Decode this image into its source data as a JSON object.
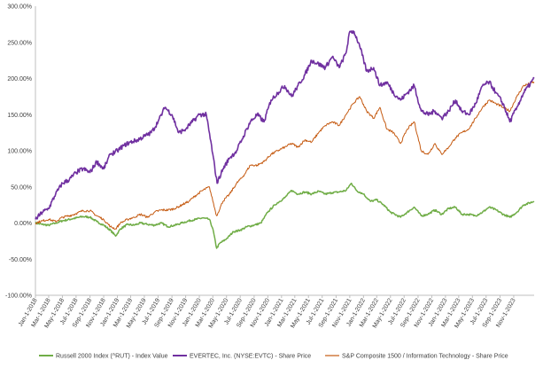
{
  "chart_data": {
    "type": "line",
    "title": "",
    "xlabel": "",
    "ylabel": "",
    "ylim": [
      -100,
      300
    ],
    "y_ticks": [
      -100,
      -50,
      0,
      50,
      100,
      150,
      200,
      250,
      300
    ],
    "y_tick_labels": [
      "-100.00%",
      "-50.00%",
      "0.00%",
      "50.00%",
      "100.00%",
      "150.00%",
      "200.00%",
      "250.00%",
      "300.00%"
    ],
    "x_range": [
      "2018-01-01",
      "2024-01-31"
    ],
    "x_tick_labels": [
      "Jan-1-2018",
      "Mar-1-2018",
      "May-1-2018",
      "Jul-1-2018",
      "Sep-1-2018",
      "Nov-1-2018",
      "Jan-1-2019",
      "Mar-1-2019",
      "May-1-2019",
      "Jul-1-2019",
      "Sep-1-2019",
      "Nov-1-2019",
      "Jan-1-2020",
      "Mar-1-2020",
      "May-1-2020",
      "Jul-1-2020",
      "Sep-1-2020",
      "Nov-1-2020",
      "Jan-1-2021",
      "Mar-1-2021",
      "May-1-2021",
      "Jul-1-2021",
      "Sep-1-2021",
      "Nov-1-2021",
      "Jan-1-2022",
      "Mar-1-2022",
      "May-1-2022",
      "Jul-1-2022",
      "Sep-1-2022",
      "Nov-1-2022",
      "Jan-1-2023",
      "Mar-1-2023",
      "May-1-2023",
      "Jul-1-2023",
      "Sep-1-2023",
      "Nov-1-2023"
    ],
    "grid": false,
    "legend_position": "bottom",
    "series": [
      {
        "name": "Russell 2000 Index (^RUT) - Index Value",
        "color": "#70ad47",
        "points": [
          [
            "2018-01-01",
            0
          ],
          [
            "2018-02-01",
            -2
          ],
          [
            "2018-03-01",
            -3
          ],
          [
            "2018-04-01",
            0
          ],
          [
            "2018-05-01",
            3
          ],
          [
            "2018-06-01",
            5
          ],
          [
            "2018-07-01",
            7
          ],
          [
            "2018-08-01",
            9
          ],
          [
            "2018-09-01",
            8
          ],
          [
            "2018-10-01",
            2
          ],
          [
            "2018-11-01",
            -3
          ],
          [
            "2018-12-01",
            -10
          ],
          [
            "2018-12-24",
            -18
          ],
          [
            "2019-01-15",
            -8
          ],
          [
            "2019-02-15",
            -2
          ],
          [
            "2019-03-15",
            -3
          ],
          [
            "2019-04-15",
            0
          ],
          [
            "2019-05-15",
            -2
          ],
          [
            "2019-06-15",
            -3
          ],
          [
            "2019-07-15",
            0
          ],
          [
            "2019-08-15",
            -5
          ],
          [
            "2019-09-15",
            -3
          ],
          [
            "2019-10-15",
            0
          ],
          [
            "2019-11-15",
            3
          ],
          [
            "2019-12-15",
            5
          ],
          [
            "2020-01-15",
            7
          ],
          [
            "2020-02-15",
            5
          ],
          [
            "2020-03-01",
            -8
          ],
          [
            "2020-03-18",
            -35
          ],
          [
            "2020-04-01",
            -28
          ],
          [
            "2020-05-01",
            -22
          ],
          [
            "2020-06-01",
            -12
          ],
          [
            "2020-07-01",
            -10
          ],
          [
            "2020-08-01",
            -5
          ],
          [
            "2020-09-01",
            -3
          ],
          [
            "2020-10-01",
            0
          ],
          [
            "2020-11-01",
            15
          ],
          [
            "2020-12-01",
            25
          ],
          [
            "2021-01-15",
            35
          ],
          [
            "2021-02-15",
            45
          ],
          [
            "2021-03-15",
            40
          ],
          [
            "2021-04-15",
            43
          ],
          [
            "2021-05-15",
            40
          ],
          [
            "2021-06-15",
            44
          ],
          [
            "2021-07-15",
            40
          ],
          [
            "2021-08-15",
            42
          ],
          [
            "2021-09-15",
            43
          ],
          [
            "2021-10-15",
            45
          ],
          [
            "2021-11-08",
            55
          ],
          [
            "2021-12-01",
            45
          ],
          [
            "2022-01-01",
            40
          ],
          [
            "2022-02-01",
            30
          ],
          [
            "2022-03-01",
            32
          ],
          [
            "2022-04-01",
            25
          ],
          [
            "2022-05-01",
            15
          ],
          [
            "2022-06-15",
            8
          ],
          [
            "2022-07-15",
            15
          ],
          [
            "2022-08-15",
            22
          ],
          [
            "2022-09-15",
            10
          ],
          [
            "2022-10-15",
            12
          ],
          [
            "2022-11-15",
            18
          ],
          [
            "2022-12-15",
            12
          ],
          [
            "2023-01-15",
            20
          ],
          [
            "2023-02-15",
            22
          ],
          [
            "2023-03-15",
            12
          ],
          [
            "2023-04-15",
            12
          ],
          [
            "2023-05-15",
            10
          ],
          [
            "2023-06-15",
            15
          ],
          [
            "2023-07-15",
            22
          ],
          [
            "2023-08-15",
            18
          ],
          [
            "2023-09-15",
            12
          ],
          [
            "2023-10-15",
            8
          ],
          [
            "2023-11-15",
            15
          ],
          [
            "2023-12-15",
            25
          ],
          [
            "2024-01-31",
            30
          ]
        ]
      },
      {
        "name": "EVERTEC, Inc. (NYSE:EVTC) - Share Price",
        "color": "#7030a0",
        "points": [
          [
            "2018-01-01",
            5
          ],
          [
            "2018-02-01",
            15
          ],
          [
            "2018-03-01",
            20
          ],
          [
            "2018-04-01",
            40
          ],
          [
            "2018-05-01",
            55
          ],
          [
            "2018-06-01",
            60
          ],
          [
            "2018-07-01",
            70
          ],
          [
            "2018-08-01",
            75
          ],
          [
            "2018-09-01",
            70
          ],
          [
            "2018-10-01",
            85
          ],
          [
            "2018-11-01",
            75
          ],
          [
            "2018-12-01",
            95
          ],
          [
            "2019-01-01",
            100
          ],
          [
            "2019-02-01",
            108
          ],
          [
            "2019-03-01",
            112
          ],
          [
            "2019-04-01",
            115
          ],
          [
            "2019-05-01",
            120
          ],
          [
            "2019-06-01",
            125
          ],
          [
            "2019-07-01",
            140
          ],
          [
            "2019-08-01",
            160
          ],
          [
            "2019-09-01",
            150
          ],
          [
            "2019-10-01",
            125
          ],
          [
            "2019-11-01",
            130
          ],
          [
            "2019-12-01",
            140
          ],
          [
            "2020-01-01",
            150
          ],
          [
            "2020-02-01",
            150
          ],
          [
            "2020-03-01",
            95
          ],
          [
            "2020-03-20",
            55
          ],
          [
            "2020-04-15",
            75
          ],
          [
            "2020-05-15",
            90
          ],
          [
            "2020-06-15",
            100
          ],
          [
            "2020-07-15",
            120
          ],
          [
            "2020-08-15",
            140
          ],
          [
            "2020-09-15",
            150
          ],
          [
            "2020-10-15",
            140
          ],
          [
            "2020-11-15",
            170
          ],
          [
            "2020-12-15",
            180
          ],
          [
            "2021-01-15",
            190
          ],
          [
            "2021-02-15",
            175
          ],
          [
            "2021-03-15",
            190
          ],
          [
            "2021-04-15",
            205
          ],
          [
            "2021-05-15",
            225
          ],
          [
            "2021-06-15",
            220
          ],
          [
            "2021-07-15",
            215
          ],
          [
            "2021-08-15",
            230
          ],
          [
            "2021-09-15",
            215
          ],
          [
            "2021-10-15",
            235
          ],
          [
            "2021-11-01",
            265
          ],
          [
            "2021-11-20",
            265
          ],
          [
            "2021-12-15",
            245
          ],
          [
            "2022-01-15",
            210
          ],
          [
            "2022-02-15",
            215
          ],
          [
            "2022-03-15",
            190
          ],
          [
            "2022-04-15",
            195
          ],
          [
            "2022-05-15",
            180
          ],
          [
            "2022-06-15",
            170
          ],
          [
            "2022-07-15",
            180
          ],
          [
            "2022-08-15",
            190
          ],
          [
            "2022-09-15",
            155
          ],
          [
            "2022-10-15",
            150
          ],
          [
            "2022-11-15",
            155
          ],
          [
            "2022-12-15",
            145
          ],
          [
            "2023-01-15",
            155
          ],
          [
            "2023-02-15",
            170
          ],
          [
            "2023-03-15",
            155
          ],
          [
            "2023-04-15",
            150
          ],
          [
            "2023-05-15",
            165
          ],
          [
            "2023-06-15",
            190
          ],
          [
            "2023-07-15",
            195
          ],
          [
            "2023-08-15",
            180
          ],
          [
            "2023-09-15",
            165
          ],
          [
            "2023-10-15",
            140
          ],
          [
            "2023-11-15",
            160
          ],
          [
            "2023-12-15",
            180
          ],
          [
            "2024-01-31",
            200
          ]
        ]
      },
      {
        "name": "S&P Composite 1500 / Information Technology - Share Price",
        "color": "#c55a11",
        "points": [
          [
            "2018-01-01",
            0
          ],
          [
            "2018-02-01",
            3
          ],
          [
            "2018-03-01",
            5
          ],
          [
            "2018-04-01",
            2
          ],
          [
            "2018-05-01",
            8
          ],
          [
            "2018-06-01",
            10
          ],
          [
            "2018-07-01",
            13
          ],
          [
            "2018-08-01",
            17
          ],
          [
            "2018-09-01",
            17
          ],
          [
            "2018-10-01",
            10
          ],
          [
            "2018-11-01",
            5
          ],
          [
            "2018-12-01",
            -5
          ],
          [
            "2018-12-24",
            -8
          ],
          [
            "2019-01-15",
            0
          ],
          [
            "2019-02-15",
            5
          ],
          [
            "2019-03-15",
            8
          ],
          [
            "2019-04-15",
            12
          ],
          [
            "2019-05-15",
            8
          ],
          [
            "2019-06-15",
            15
          ],
          [
            "2019-07-15",
            18
          ],
          [
            "2019-08-15",
            18
          ],
          [
            "2019-09-15",
            20
          ],
          [
            "2019-10-15",
            25
          ],
          [
            "2019-11-15",
            30
          ],
          [
            "2019-12-15",
            38
          ],
          [
            "2020-01-15",
            45
          ],
          [
            "2020-02-15",
            50
          ],
          [
            "2020-03-01",
            30
          ],
          [
            "2020-03-18",
            10
          ],
          [
            "2020-04-15",
            30
          ],
          [
            "2020-05-15",
            40
          ],
          [
            "2020-06-15",
            55
          ],
          [
            "2020-07-15",
            65
          ],
          [
            "2020-08-15",
            80
          ],
          [
            "2020-09-15",
            80
          ],
          [
            "2020-10-15",
            85
          ],
          [
            "2020-11-15",
            95
          ],
          [
            "2020-12-15",
            100
          ],
          [
            "2021-01-15",
            105
          ],
          [
            "2021-02-15",
            110
          ],
          [
            "2021-03-15",
            105
          ],
          [
            "2021-04-15",
            115
          ],
          [
            "2021-05-15",
            112
          ],
          [
            "2021-06-15",
            125
          ],
          [
            "2021-07-15",
            135
          ],
          [
            "2021-08-15",
            140
          ],
          [
            "2021-09-15",
            135
          ],
          [
            "2021-10-15",
            150
          ],
          [
            "2021-11-15",
            165
          ],
          [
            "2021-12-15",
            175
          ],
          [
            "2022-01-15",
            155
          ],
          [
            "2022-02-15",
            145
          ],
          [
            "2022-03-15",
            160
          ],
          [
            "2022-04-15",
            130
          ],
          [
            "2022-05-15",
            125
          ],
          [
            "2022-06-15",
            110
          ],
          [
            "2022-07-15",
            130
          ],
          [
            "2022-08-15",
            140
          ],
          [
            "2022-09-15",
            100
          ],
          [
            "2022-10-15",
            95
          ],
          [
            "2022-11-15",
            110
          ],
          [
            "2022-12-15",
            95
          ],
          [
            "2023-01-15",
            105
          ],
          [
            "2023-02-15",
            118
          ],
          [
            "2023-03-15",
            125
          ],
          [
            "2023-04-15",
            130
          ],
          [
            "2023-05-15",
            145
          ],
          [
            "2023-06-15",
            160
          ],
          [
            "2023-07-15",
            170
          ],
          [
            "2023-08-15",
            165
          ],
          [
            "2023-09-15",
            160
          ],
          [
            "2023-10-15",
            155
          ],
          [
            "2023-11-15",
            175
          ],
          [
            "2023-12-15",
            190
          ],
          [
            "2024-01-31",
            195
          ]
        ]
      }
    ]
  }
}
